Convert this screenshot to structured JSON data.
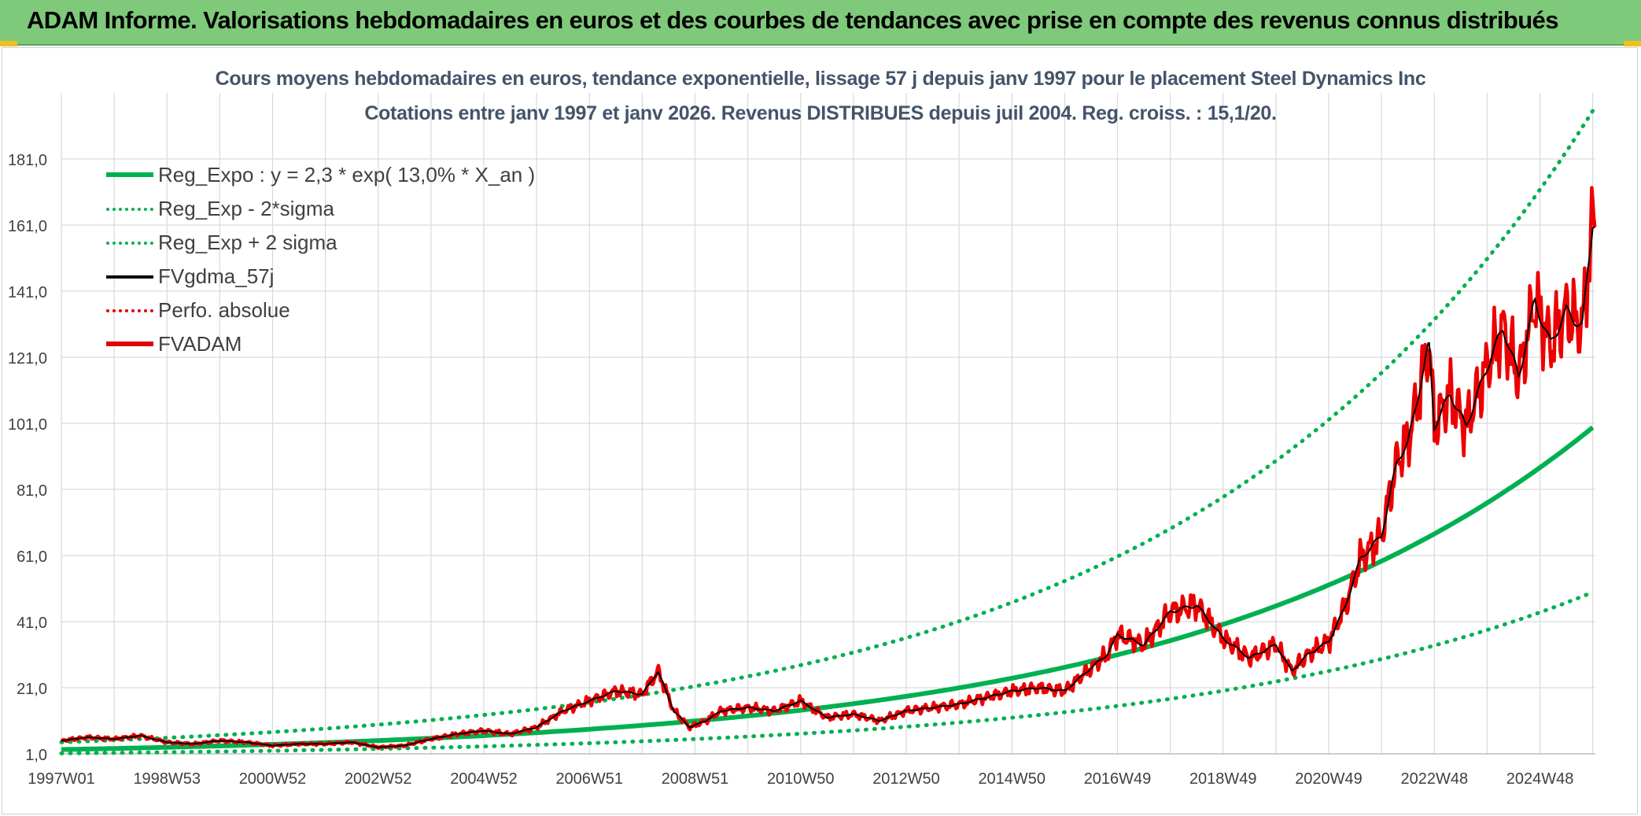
{
  "header": {
    "title": "ADAM Informe. Valorisations hebdomadaires en euros et des courbes de tendances avec prise en compte des revenus connus distribués"
  },
  "chart_data": {
    "type": "line",
    "title": "Cours moyens hebdomadaires en euros, tendance exponentielle, lissage 57 j depuis janv 1997 pour le placement Steel Dynamics Inc",
    "subtitle": "Cotations entre janv 1997 et janv 2026. Revenus DISTRIBUES depuis juil 2004. Reg. croiss. : 15,1/20.",
    "xlabel": "",
    "ylabel": "",
    "x_ticks": [
      "1997W01",
      "1998W53",
      "2000W52",
      "2002W52",
      "2004W52",
      "2006W51",
      "2008W51",
      "2010W50",
      "2012W50",
      "2014W50",
      "2016W49",
      "2018W49",
      "2020W49",
      "2022W48",
      "2024W48"
    ],
    "x_tick_years": [
      1997.0,
      1999.0,
      2001.0,
      2003.0,
      2005.0,
      2007.0,
      2009.0,
      2011.0,
      2013.0,
      2015.0,
      2017.0,
      2019.0,
      2021.0,
      2023.0,
      2025.0
    ],
    "xlim": [
      1997.0,
      2026.05
    ],
    "y_ticks": [
      "1,0",
      "21,0",
      "41,0",
      "61,0",
      "81,0",
      "101,0",
      "121,0",
      "141,0",
      "161,0",
      "181,0"
    ],
    "y_tick_values": [
      1,
      21,
      41,
      61,
      81,
      101,
      121,
      141,
      161,
      181
    ],
    "ylim": [
      1,
      201
    ],
    "grid": true,
    "legend_position": "top-left",
    "trend": {
      "a": 2.3,
      "rate": 0.13,
      "sigma_factor_low": 0.5,
      "sigma_factor_high": 1.96
    },
    "series": [
      {
        "name": "Reg_Expo : y = 2,3 * exp( 13,0% *  X_an )",
        "style": "solid-thick",
        "color": "#00b050"
      },
      {
        "name": "Reg_Exp - 2*sigma",
        "style": "dotted",
        "color": "#00b050"
      },
      {
        "name": "Reg_Exp + 2 sigma",
        "style": "dotted",
        "color": "#00b050"
      },
      {
        "name": "FVgdma_57j",
        "style": "solid",
        "color": "#000000"
      },
      {
        "name": "Perfo. absolue",
        "style": "dotted",
        "color": "#e00000"
      },
      {
        "name": "FVADAM",
        "style": "solid-thick",
        "color": "#e00000"
      }
    ],
    "price_points": {
      "x": [
        1997.0,
        1997.5,
        1998.0,
        1998.5,
        1999.0,
        1999.5,
        2000.0,
        2000.5,
        2001.0,
        2001.5,
        2002.0,
        2002.5,
        2003.0,
        2003.5,
        2004.0,
        2004.5,
        2005.0,
        2005.5,
        2006.0,
        2006.5,
        2007.0,
        2007.5,
        2008.0,
        2008.3,
        2008.6,
        2008.9,
        2009.2,
        2009.5,
        2010.0,
        2010.5,
        2011.0,
        2011.5,
        2012.0,
        2012.5,
        2013.0,
        2013.5,
        2014.0,
        2014.5,
        2015.0,
        2015.5,
        2016.0,
        2016.5,
        2016.8,
        2017.0,
        2017.5,
        2018.0,
        2018.5,
        2018.8,
        2019.0,
        2019.5,
        2020.0,
        2020.3,
        2020.6,
        2021.0,
        2021.3,
        2021.6,
        2022.0,
        2022.3,
        2022.5,
        2022.7,
        2022.9,
        2023.0,
        2023.3,
        2023.6,
        2024.0,
        2024.3,
        2024.6,
        2024.9,
        2025.2,
        2025.5,
        2025.8,
        2026.0
      ],
      "y": [
        5,
        6,
        5.5,
        6.5,
        4.5,
        4,
        5,
        4.5,
        3.5,
        4,
        4,
        4.5,
        3,
        3.5,
        5.5,
        7,
        8,
        7,
        9,
        14,
        17,
        20,
        19,
        26,
        14,
        9,
        11,
        14,
        15,
        14,
        17,
        12,
        13,
        11,
        14,
        15,
        16,
        18,
        20,
        21,
        20,
        27,
        31,
        37,
        34,
        44,
        46,
        40,
        36,
        30,
        34,
        26,
        31,
        35,
        45,
        60,
        67,
        90,
        95,
        110,
        125,
        100,
        110,
        100,
        118,
        130,
        115,
        138,
        125,
        135,
        130,
        162
      ]
    }
  }
}
